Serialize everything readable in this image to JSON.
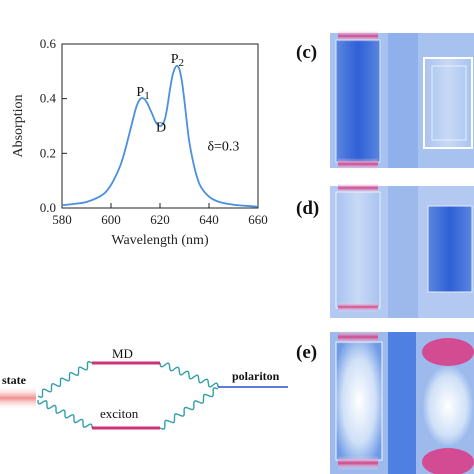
{
  "panels": {
    "c": {
      "tag": "(c)"
    },
    "d": {
      "tag": "(d)"
    },
    "e": {
      "tag": "(e)"
    }
  },
  "diagram": {
    "labels": {
      "state": "state",
      "md": "MD",
      "exciton": "exciton",
      "polariton": "polariton"
    },
    "colors": {
      "md_line": "#cc3377",
      "wave": "#33a0a8",
      "polariton_line": "#2b4fc8",
      "state_glow": "#f08080"
    }
  },
  "chart_data": {
    "type": "line",
    "title": "",
    "xlabel": "Wavelength  (nm)",
    "ylabel": "Absorption",
    "xlim": [
      580,
      660
    ],
    "ylim": [
      0,
      0.6
    ],
    "xticks": [
      "580",
      "600",
      "620",
      "640",
      "660"
    ],
    "yticks": [
      "0.0",
      "0.2",
      "0.4",
      "0.6"
    ],
    "grid": false,
    "line_color": "#4a8fe0",
    "series": [
      {
        "x": [
          580,
          585,
          590,
          595,
          598,
          601,
          604,
          606,
          608,
          610,
          611,
          612,
          613,
          614,
          615,
          616,
          617,
          618,
          619,
          620,
          621,
          622,
          623,
          624,
          625,
          626,
          627,
          628,
          629,
          630,
          631,
          632,
          634,
          636,
          638,
          641,
          645,
          650,
          655,
          660
        ],
        "y": [
          0.01,
          0.015,
          0.022,
          0.04,
          0.06,
          0.1,
          0.16,
          0.22,
          0.29,
          0.36,
          0.385,
          0.4,
          0.402,
          0.395,
          0.38,
          0.36,
          0.34,
          0.318,
          0.305,
          0.3,
          0.305,
          0.325,
          0.37,
          0.43,
          0.48,
          0.51,
          0.52,
          0.505,
          0.46,
          0.39,
          0.31,
          0.24,
          0.15,
          0.09,
          0.06,
          0.035,
          0.02,
          0.012,
          0.008,
          0.005
        ]
      }
    ],
    "annotations": [
      {
        "text": "P",
        "sub": "1",
        "x": 612,
        "y": 0.41
      },
      {
        "text": "P",
        "sub": "2",
        "x": 626,
        "y": 0.53
      },
      {
        "text": "D",
        "x": 620,
        "y": 0.28
      },
      {
        "text": "δ=0.3",
        "x": 641,
        "y": 0.21
      }
    ]
  }
}
